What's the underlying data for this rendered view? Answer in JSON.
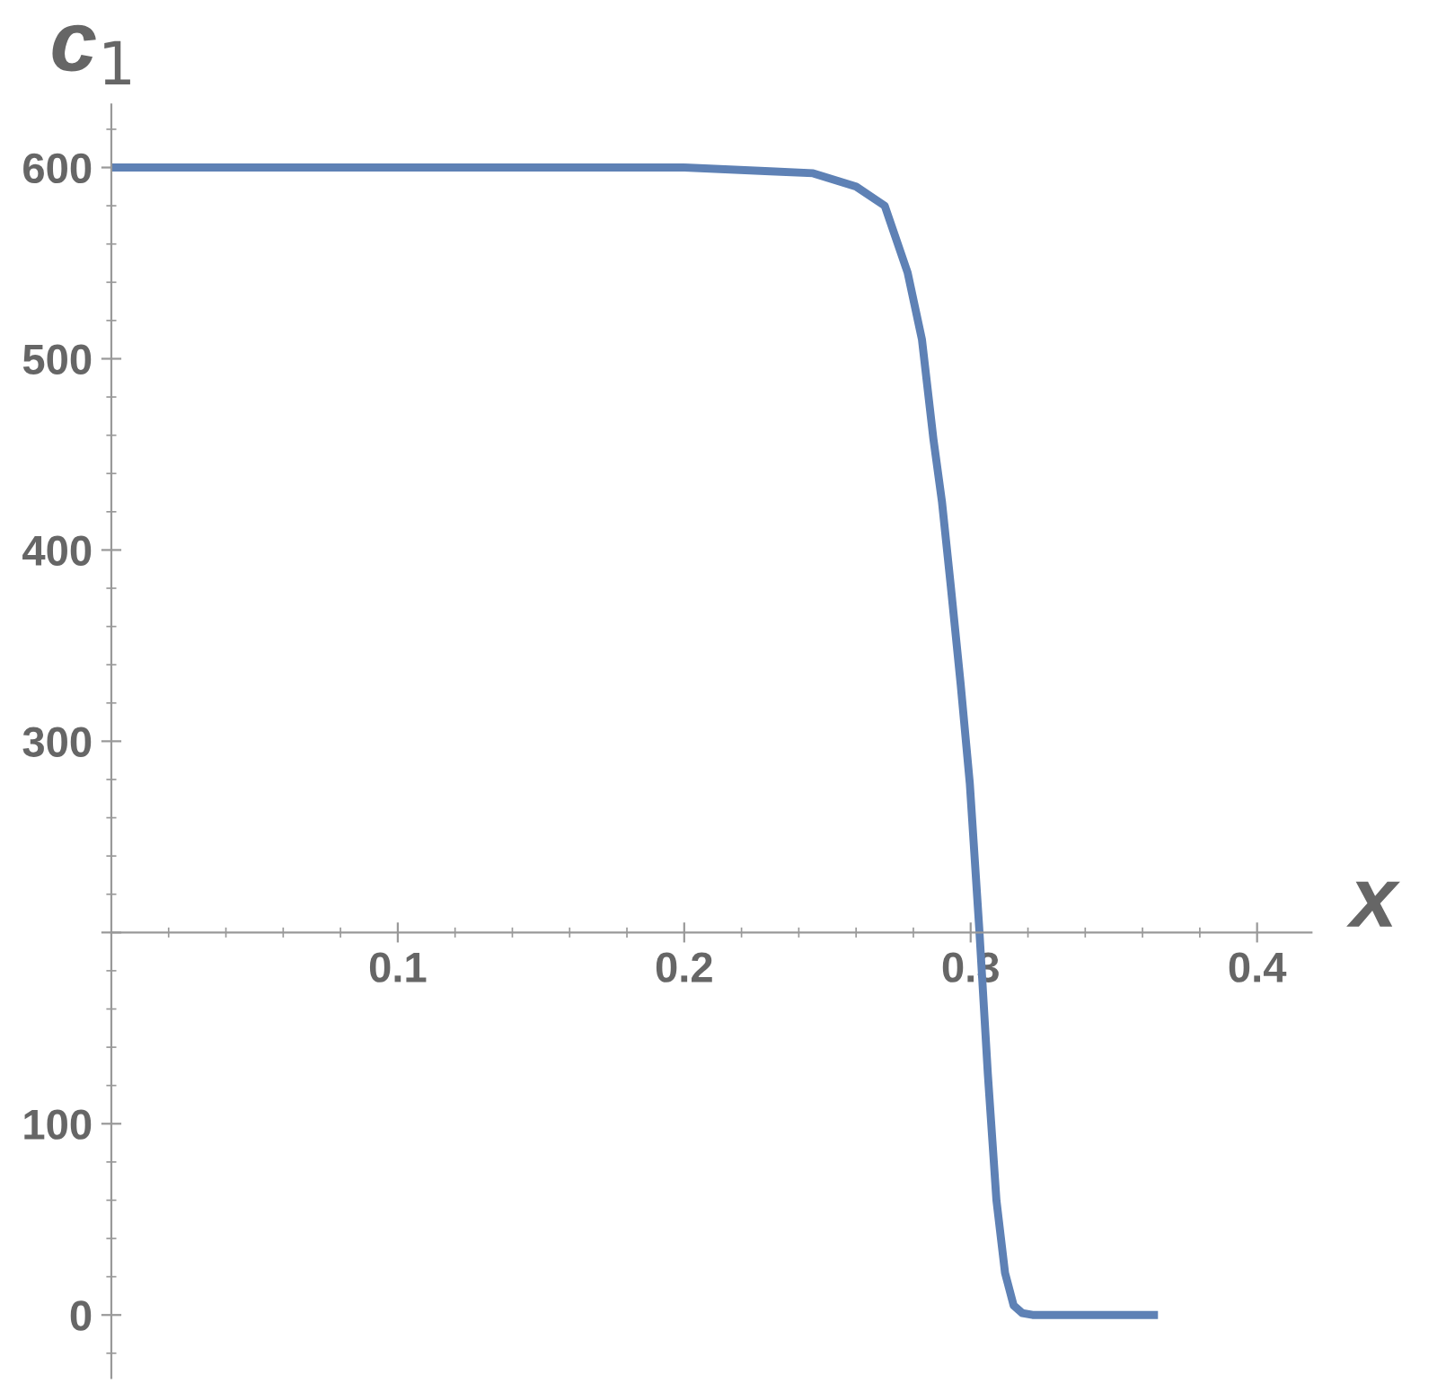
{
  "chart_data": {
    "type": "line",
    "xlabel": "x",
    "ylabel": "c$_{1}$",
    "x": [
      0,
      0.05,
      0.1,
      0.15,
      0.2,
      0.23,
      0.245,
      0.26,
      0.27,
      0.278,
      0.283,
      0.287,
      0.29,
      0.293,
      0.2965,
      0.2997,
      0.303,
      0.306,
      0.309,
      0.312,
      0.315,
      0.318,
      0.3216,
      0.33,
      0.35,
      0.364
    ],
    "series": [
      {
        "color": "#5e81b5",
        "values": [
          600,
          600,
          600,
          600,
          600,
          598,
          597,
          590,
          580,
          545,
          510,
          458,
          425,
          382,
          330,
          278,
          202,
          126,
          60,
          22,
          5,
          1,
          0,
          0,
          0,
          0
        ]
      }
    ],
    "xlim": [
      0,
      0.419
    ],
    "ylim": [
      -33,
      633
    ],
    "xticks": [
      0.1,
      0.2,
      0.3,
      0.4
    ],
    "yticks": [
      0,
      100,
      {
        "value": 200,
        "label": null
      },
      300,
      400,
      500,
      600
    ],
    "grid": false,
    "legend": false,
    "marker": "none",
    "line_style": "solid"
  }
}
